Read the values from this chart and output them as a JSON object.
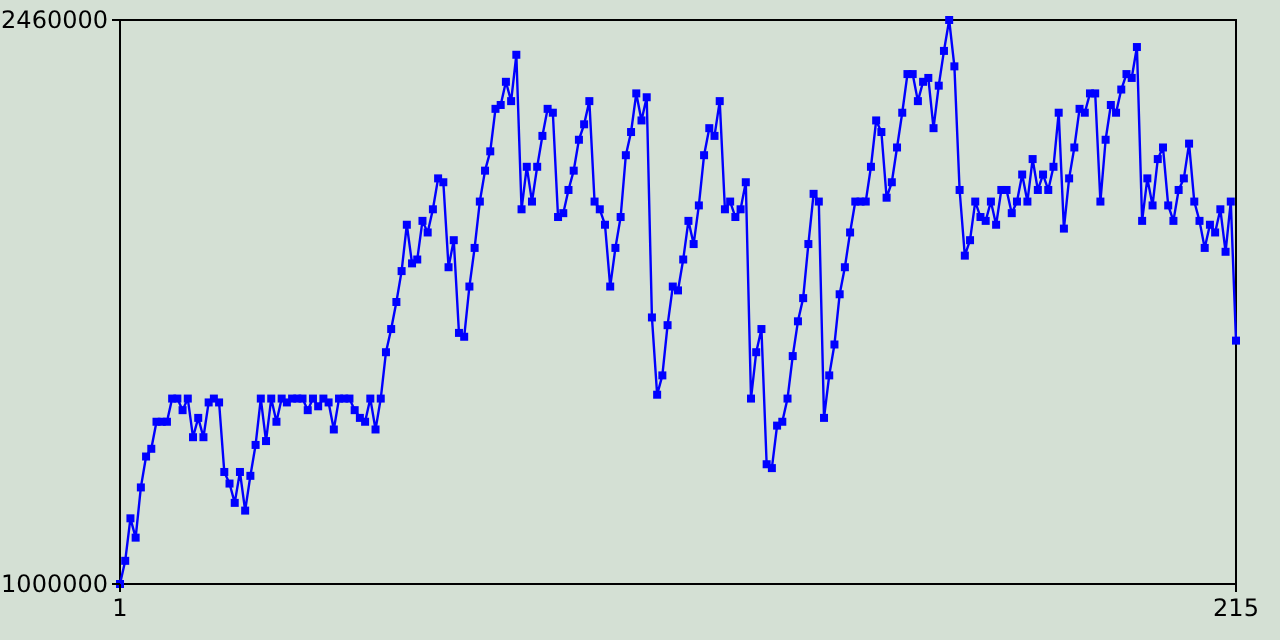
{
  "chart_data": {
    "type": "line",
    "marker": "square",
    "line_style": "solid",
    "xlim": [
      1,
      215
    ],
    "xticks": [
      1,
      215
    ],
    "ylim": [
      1000000,
      2460000
    ],
    "yticks": [
      1000000,
      2460000
    ],
    "x": [
      1,
      2,
      3,
      4,
      5,
      6,
      7,
      8,
      9,
      10,
      11,
      12,
      13,
      14,
      15,
      16,
      17,
      18,
      19,
      20,
      21,
      22,
      23,
      24,
      25,
      26,
      27,
      28,
      29,
      30,
      31,
      32,
      33,
      34,
      35,
      36,
      37,
      38,
      39,
      40,
      41,
      42,
      43,
      44,
      45,
      46,
      47,
      48,
      49,
      50,
      51,
      52,
      53,
      54,
      55,
      56,
      57,
      58,
      59,
      60,
      61,
      62,
      63,
      64,
      65,
      66,
      67,
      68,
      69,
      70,
      71,
      72,
      73,
      74,
      75,
      76,
      77,
      78,
      79,
      80,
      81,
      82,
      83,
      84,
      85,
      86,
      87,
      88,
      89,
      90,
      91,
      92,
      93,
      94,
      95,
      96,
      97,
      98,
      99,
      100,
      101,
      102,
      103,
      104,
      105,
      106,
      107,
      108,
      109,
      110,
      111,
      112,
      113,
      114,
      115,
      116,
      117,
      118,
      119,
      120,
      121,
      122,
      123,
      124,
      125,
      126,
      127,
      128,
      129,
      130,
      131,
      132,
      133,
      134,
      135,
      136,
      137,
      138,
      139,
      140,
      141,
      142,
      143,
      144,
      145,
      146,
      147,
      148,
      149,
      150,
      151,
      152,
      153,
      154,
      155,
      156,
      157,
      158,
      159,
      160,
      161,
      162,
      163,
      164,
      165,
      166,
      167,
      168,
      169,
      170,
      171,
      172,
      173,
      174,
      175,
      176,
      177,
      178,
      179,
      180,
      181,
      182,
      183,
      184,
      185,
      186,
      187,
      188,
      189,
      190,
      191,
      192,
      193,
      194,
      195,
      196,
      197,
      198,
      199,
      200,
      201,
      202,
      203,
      204,
      205,
      206,
      207,
      208,
      209,
      210,
      211,
      212,
      213,
      214,
      215
    ],
    "series": [
      {
        "color": "#0000ff",
        "values": [
          1000000,
          1060000,
          1170000,
          1120000,
          1250000,
          1330000,
          1350000,
          1420000,
          1420000,
          1420000,
          1480000,
          1480000,
          1450000,
          1480000,
          1380000,
          1430000,
          1380000,
          1470000,
          1480000,
          1470000,
          1290000,
          1260000,
          1210000,
          1290000,
          1190000,
          1280000,
          1360000,
          1480000,
          1370000,
          1480000,
          1420000,
          1480000,
          1470000,
          1480000,
          1480000,
          1480000,
          1450000,
          1480000,
          1460000,
          1480000,
          1470000,
          1400000,
          1480000,
          1480000,
          1480000,
          1450000,
          1430000,
          1420000,
          1480000,
          1400000,
          1480000,
          1600000,
          1660000,
          1730000,
          1810000,
          1930000,
          1830000,
          1840000,
          1940000,
          1910000,
          1970000,
          2050000,
          2040000,
          1820000,
          1890000,
          1650000,
          1640000,
          1770000,
          1870000,
          1990000,
          2070000,
          2120000,
          2230000,
          2240000,
          2300000,
          2250000,
          2370000,
          1970000,
          2080000,
          1990000,
          2080000,
          2160000,
          2230000,
          2220000,
          1950000,
          1960000,
          2020000,
          2070000,
          2150000,
          2190000,
          2250000,
          1990000,
          1970000,
          1930000,
          1770000,
          1870000,
          1950000,
          2110000,
          2170000,
          2270000,
          2200000,
          2260000,
          1690000,
          1490000,
          1540000,
          1670000,
          1770000,
          1760000,
          1840000,
          1940000,
          1880000,
          1980000,
          2110000,
          2180000,
          2160000,
          2250000,
          1970000,
          1990000,
          1950000,
          1970000,
          2040000,
          1480000,
          1600000,
          1660000,
          1310000,
          1300000,
          1410000,
          1420000,
          1480000,
          1590000,
          1680000,
          1740000,
          1880000,
          2010000,
          1990000,
          1430000,
          1540000,
          1620000,
          1750000,
          1820000,
          1910000,
          1990000,
          1990000,
          1990000,
          2080000,
          2200000,
          2170000,
          2000000,
          2040000,
          2130000,
          2220000,
          2320000,
          2320000,
          2250000,
          2300000,
          2310000,
          2180000,
          2290000,
          2380000,
          2460000,
          2340000,
          2020000,
          1850000,
          1890000,
          1990000,
          1950000,
          1940000,
          1990000,
          1930000,
          2020000,
          2020000,
          1960000,
          1990000,
          2060000,
          1990000,
          2100000,
          2020000,
          2060000,
          2020000,
          2080000,
          2220000,
          1920000,
          2050000,
          2130000,
          2230000,
          2220000,
          2270000,
          2270000,
          1990000,
          2150000,
          2240000,
          2220000,
          2280000,
          2320000,
          2310000,
          2390000,
          1940000,
          2050000,
          1980000,
          2100000,
          2130000,
          1980000,
          1940000,
          2020000,
          2050000,
          2140000,
          1990000,
          1940000,
          1870000,
          1930000,
          1910000,
          1970000,
          1860000,
          1990000,
          1630000
        ]
      }
    ]
  }
}
